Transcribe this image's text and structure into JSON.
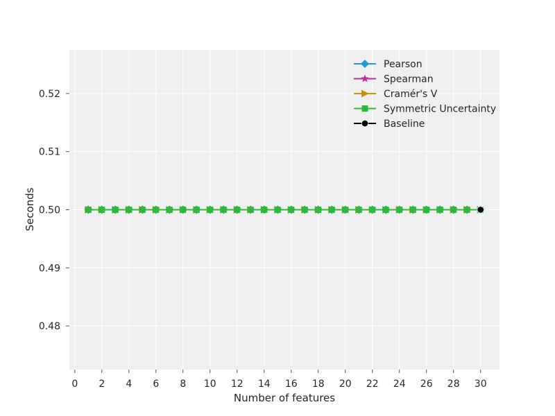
{
  "chart_data": {
    "type": "line",
    "title": "",
    "xlabel": "Number of features",
    "ylabel": "Seconds",
    "xlim": [
      -0.4,
      31.4
    ],
    "ylim": [
      0.4725,
      0.5275
    ],
    "xticks": [
      0,
      2,
      4,
      6,
      8,
      10,
      12,
      14,
      16,
      18,
      20,
      22,
      24,
      26,
      28,
      30
    ],
    "yticks": [
      0.48,
      0.49,
      0.5,
      0.51,
      0.52
    ],
    "ytick_labels": [
      "0.48",
      "0.49",
      "0.50",
      "0.51",
      "0.52"
    ],
    "grid": true,
    "legend_position": "top-right",
    "x": [
      1,
      2,
      3,
      4,
      5,
      6,
      7,
      8,
      9,
      10,
      11,
      12,
      13,
      14,
      15,
      16,
      17,
      18,
      19,
      20,
      21,
      22,
      23,
      24,
      25,
      26,
      27,
      28,
      29,
      30
    ],
    "series": [
      {
        "name": "Pearson",
        "color": "#1f9bd8",
        "marker": "diamond",
        "values": [
          0.5,
          0.5,
          0.5,
          0.5,
          0.5,
          0.5,
          0.5,
          0.5,
          0.5,
          0.5,
          0.5,
          0.5,
          0.5,
          0.5,
          0.5,
          0.5,
          0.5,
          0.5,
          0.5,
          0.5,
          0.5,
          0.5,
          0.5,
          0.5,
          0.5,
          0.5,
          0.5,
          0.5,
          0.5,
          0.5
        ]
      },
      {
        "name": "Spearman",
        "color": "#c12d9a",
        "marker": "star",
        "values": [
          0.5,
          0.5,
          0.5,
          0.5,
          0.5,
          0.5,
          0.5,
          0.5,
          0.5,
          0.5,
          0.5,
          0.5,
          0.5,
          0.5,
          0.5,
          0.5,
          0.5,
          0.5,
          0.5,
          0.5,
          0.5,
          0.5,
          0.5,
          0.5,
          0.5,
          0.5,
          0.5,
          0.5,
          0.5,
          0.5
        ]
      },
      {
        "name": "Cramér's V",
        "color": "#c8920a",
        "marker": "triangle-right",
        "values": [
          0.5,
          0.5,
          0.5,
          0.5,
          0.5,
          0.5,
          0.5,
          0.5,
          0.5,
          0.5,
          0.5,
          0.5,
          0.5,
          0.5,
          0.5,
          0.5,
          0.5,
          0.5,
          0.5,
          0.5,
          0.5,
          0.5,
          0.5,
          0.5,
          0.5,
          0.5,
          0.5,
          0.5,
          0.5,
          0.5
        ]
      },
      {
        "name": "Symmetric Uncertainty",
        "color": "#2eb83f",
        "marker": "square",
        "values": [
          0.5,
          0.5,
          0.5,
          0.5,
          0.5,
          0.5,
          0.5,
          0.5,
          0.5,
          0.5,
          0.5,
          0.5,
          0.5,
          0.5,
          0.5,
          0.5,
          0.5,
          0.5,
          0.5,
          0.5,
          0.5,
          0.5,
          0.5,
          0.5,
          0.5,
          0.5,
          0.5,
          0.5,
          0.5,
          0.5
        ]
      },
      {
        "name": "Baseline",
        "color": "#000000",
        "marker": "circle",
        "x": [
          30
        ],
        "values": [
          0.5
        ]
      }
    ]
  }
}
